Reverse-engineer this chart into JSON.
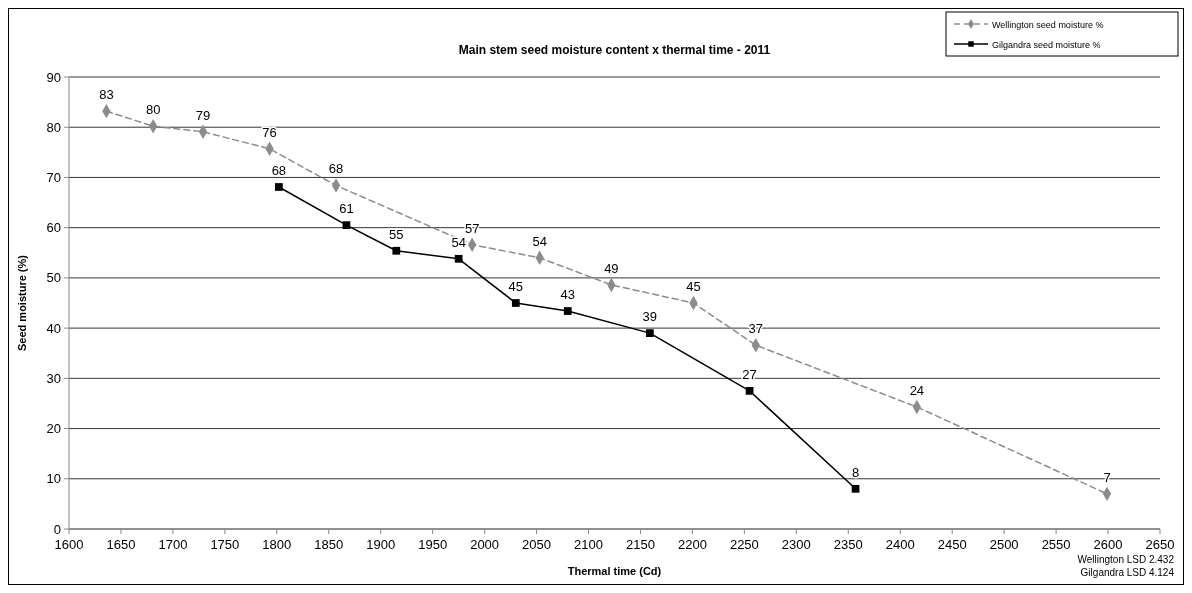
{
  "chart_data": {
    "type": "line",
    "title": "Main stem seed moisture content x thermal time - 2011",
    "xlabel": "Thermal time (Cd)",
    "ylabel": "Seed moisture (%)",
    "xlim": [
      1600,
      2650
    ],
    "xticks": [
      1600,
      1650,
      1700,
      1750,
      1800,
      1850,
      1900,
      1950,
      2000,
      2050,
      2100,
      2150,
      2200,
      2250,
      2300,
      2350,
      2400,
      2450,
      2500,
      2550,
      2600,
      2650
    ],
    "ylim": [
      0,
      90
    ],
    "yticks": [
      0,
      10,
      20,
      30,
      40,
      50,
      60,
      70,
      80,
      90
    ],
    "grid": "y",
    "legend": "top right",
    "series": [
      {
        "name": "Wellington seed moisture %",
        "color": "#8c8c8c",
        "marker": "diamond",
        "line_style": "dashed",
        "x": [
          1636,
          1681,
          1729,
          1793,
          1857,
          1988,
          2053,
          2122,
          2201,
          2261,
          2416,
          2599
        ],
        "values": [
          83.2,
          80.2,
          79.1,
          75.7,
          68.4,
          56.6,
          54,
          48.6,
          45,
          36.6,
          24.3,
          7
        ],
        "value_labels": [
          "83",
          "80",
          "79",
          "76",
          "68",
          "57",
          "54",
          "49",
          "45",
          "37",
          "24",
          "7"
        ]
      },
      {
        "name": "Gilgandra seed moisture %",
        "color": "#000000",
        "marker": "square",
        "line_style": "solid",
        "x": [
          1802,
          1867,
          1915,
          1975,
          2030,
          2080,
          2159,
          2255,
          2357
        ],
        "values": [
          68.1,
          60.5,
          55.4,
          53.8,
          45,
          43.4,
          39,
          27.5,
          8
        ],
        "value_labels": [
          "68",
          "61",
          "55",
          "54",
          "45",
          "43",
          "39",
          "27",
          "8"
        ]
      }
    ],
    "annotations": [
      "Wellington LSD 2.432",
      "Gilgandra LSD 4.124"
    ]
  }
}
